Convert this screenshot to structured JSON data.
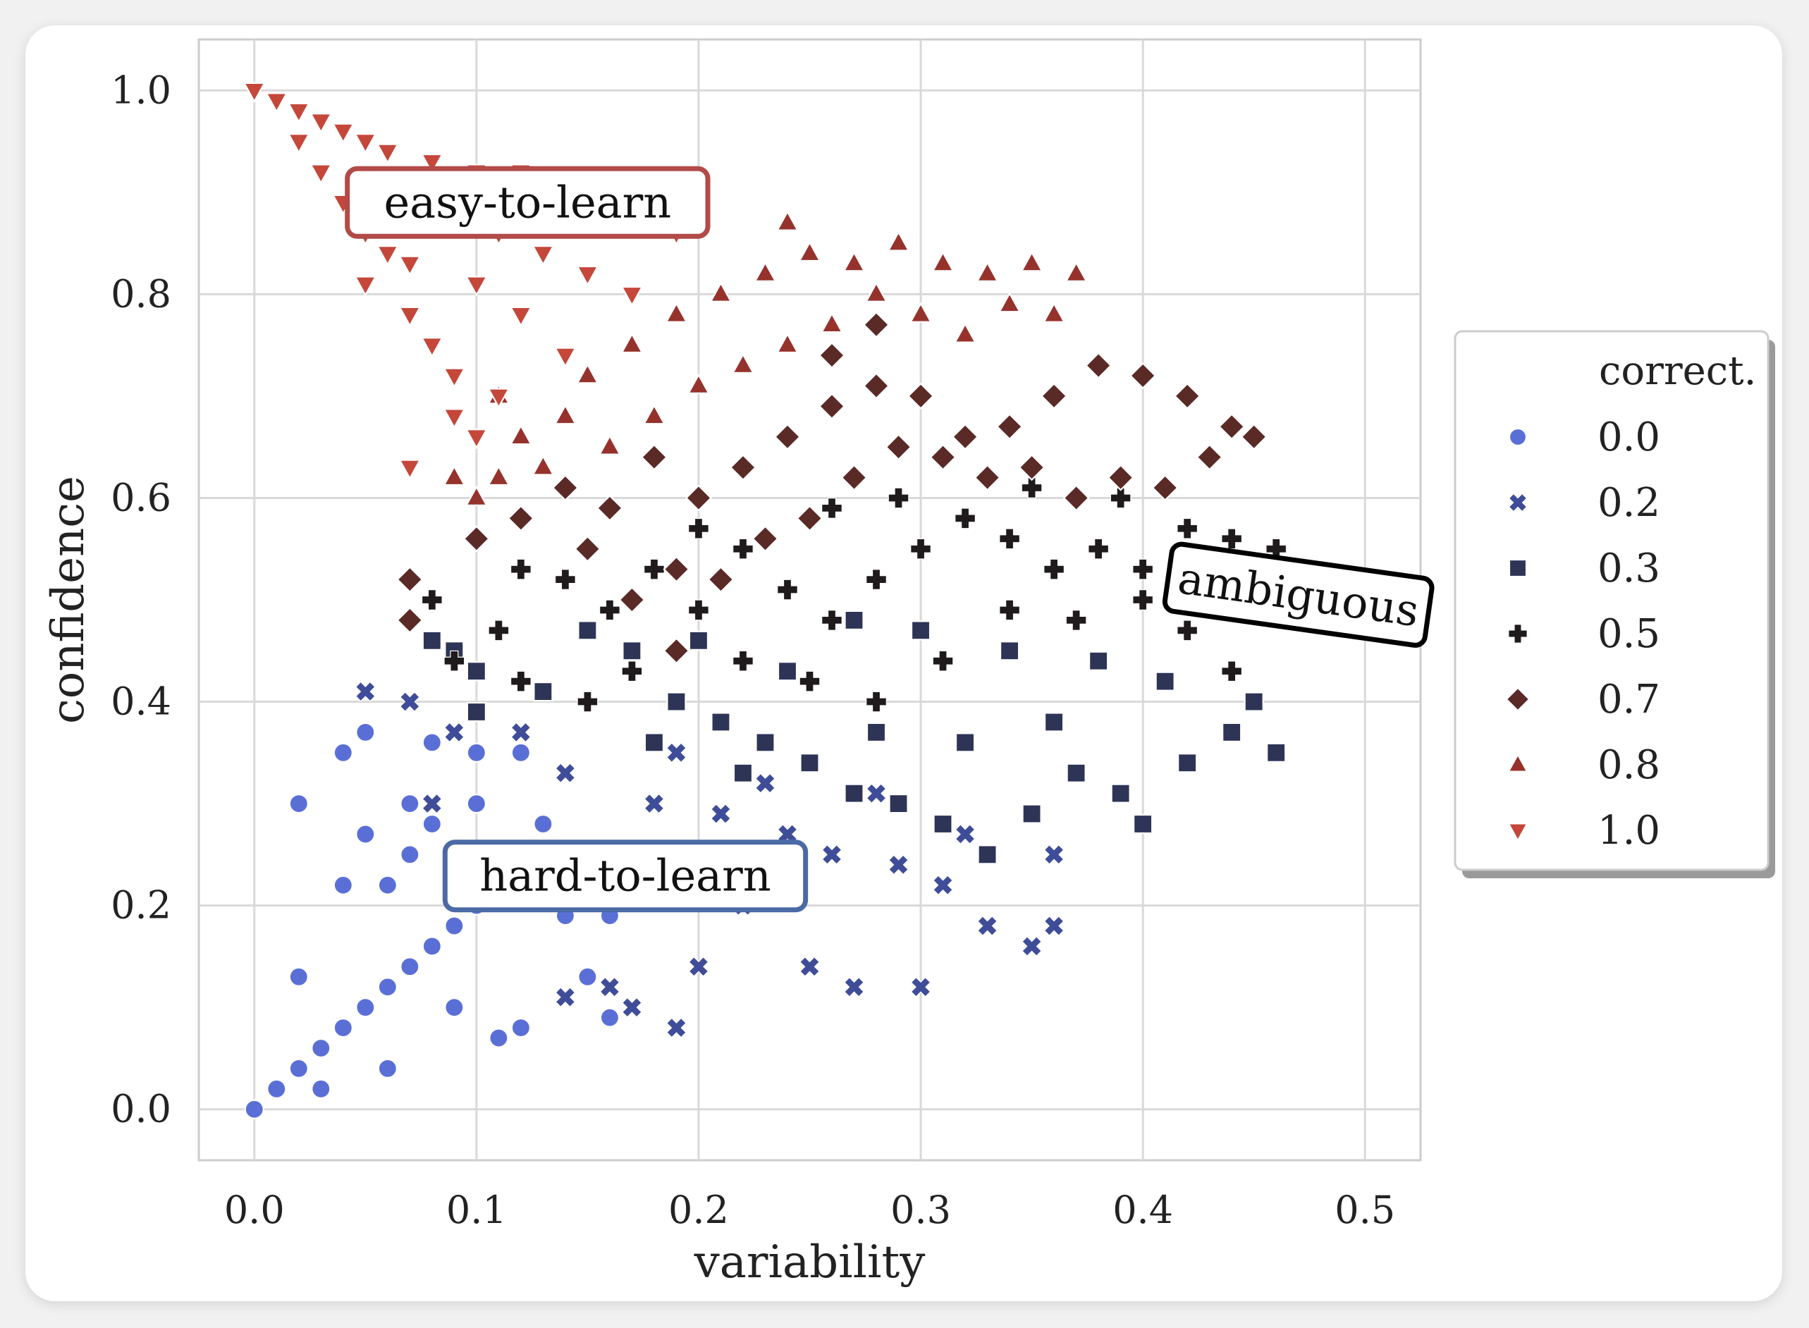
{
  "chart_data": {
    "type": "scatter",
    "xlabel": "variability",
    "ylabel": "confidence",
    "xlim": [
      -0.025,
      0.525
    ],
    "ylim": [
      -0.05,
      1.05
    ],
    "x_ticks": [
      0.0,
      0.1,
      0.2,
      0.3,
      0.4,
      0.5
    ],
    "y_ticks": [
      0.0,
      0.2,
      0.4,
      0.6,
      0.8,
      1.0
    ],
    "x_tick_labels": [
      "0.0",
      "0.1",
      "0.2",
      "0.3",
      "0.4",
      "0.5"
    ],
    "y_tick_labels": [
      "0.0",
      "0.2",
      "0.4",
      "0.6",
      "0.8",
      "1.0"
    ],
    "grid": true,
    "legend": {
      "title": "correct.",
      "placement": "right-outside",
      "entries": [
        {
          "label": "0.0",
          "marker": "circle",
          "color": "#5a6fd6"
        },
        {
          "label": "0.2",
          "marker": "x",
          "color": "#3f4d99"
        },
        {
          "label": "0.3",
          "marker": "square",
          "color": "#2d3456"
        },
        {
          "label": "0.5",
          "marker": "plus",
          "color": "#1f1a1c"
        },
        {
          "label": "0.7",
          "marker": "diamond",
          "color": "#5a2a26"
        },
        {
          "label": "0.8",
          "marker": "triangle-up",
          "color": "#96322c"
        },
        {
          "label": "1.0",
          "marker": "triangle-down",
          "color": "#c4473a"
        }
      ]
    },
    "series": [
      {
        "name": "0.0",
        "points": [
          [
            0.0,
            0.0
          ],
          [
            0.01,
            0.02
          ],
          [
            0.02,
            0.04
          ],
          [
            0.03,
            0.06
          ],
          [
            0.04,
            0.08
          ],
          [
            0.05,
            0.1
          ],
          [
            0.06,
            0.12
          ],
          [
            0.07,
            0.14
          ],
          [
            0.08,
            0.16
          ],
          [
            0.09,
            0.18
          ],
          [
            0.1,
            0.2
          ],
          [
            0.12,
            0.22
          ],
          [
            0.14,
            0.19
          ],
          [
            0.11,
            0.25
          ],
          [
            0.13,
            0.28
          ],
          [
            0.1,
            0.3
          ],
          [
            0.02,
            0.3
          ],
          [
            0.05,
            0.27
          ],
          [
            0.07,
            0.3
          ],
          [
            0.04,
            0.35
          ],
          [
            0.05,
            0.37
          ],
          [
            0.08,
            0.36
          ],
          [
            0.1,
            0.35
          ],
          [
            0.12,
            0.35
          ],
          [
            0.06,
            0.22
          ],
          [
            0.04,
            0.22
          ],
          [
            0.07,
            0.25
          ],
          [
            0.08,
            0.28
          ],
          [
            0.09,
            0.1
          ],
          [
            0.11,
            0.07
          ],
          [
            0.12,
            0.08
          ],
          [
            0.15,
            0.13
          ],
          [
            0.16,
            0.09
          ],
          [
            0.06,
            0.04
          ],
          [
            0.03,
            0.02
          ],
          [
            0.02,
            0.13
          ],
          [
            0.16,
            0.19
          ]
        ]
      },
      {
        "name": "0.2",
        "points": [
          [
            0.05,
            0.41
          ],
          [
            0.07,
            0.4
          ],
          [
            0.09,
            0.37
          ],
          [
            0.08,
            0.3
          ],
          [
            0.12,
            0.37
          ],
          [
            0.14,
            0.33
          ],
          [
            0.18,
            0.3
          ],
          [
            0.21,
            0.29
          ],
          [
            0.24,
            0.27
          ],
          [
            0.26,
            0.25
          ],
          [
            0.29,
            0.24
          ],
          [
            0.31,
            0.22
          ],
          [
            0.33,
            0.18
          ],
          [
            0.35,
            0.16
          ],
          [
            0.36,
            0.18
          ],
          [
            0.22,
            0.2
          ],
          [
            0.25,
            0.14
          ],
          [
            0.27,
            0.12
          ],
          [
            0.3,
            0.12
          ],
          [
            0.2,
            0.14
          ],
          [
            0.19,
            0.08
          ],
          [
            0.17,
            0.1
          ],
          [
            0.16,
            0.12
          ],
          [
            0.14,
            0.11
          ],
          [
            0.23,
            0.32
          ],
          [
            0.28,
            0.31
          ],
          [
            0.32,
            0.27
          ],
          [
            0.36,
            0.25
          ],
          [
            0.19,
            0.35
          ],
          [
            0.15,
            0.25
          ]
        ]
      },
      {
        "name": "0.3",
        "points": [
          [
            0.08,
            0.46
          ],
          [
            0.09,
            0.45
          ],
          [
            0.1,
            0.43
          ],
          [
            0.1,
            0.39
          ],
          [
            0.13,
            0.41
          ],
          [
            0.15,
            0.47
          ],
          [
            0.17,
            0.45
          ],
          [
            0.19,
            0.4
          ],
          [
            0.21,
            0.38
          ],
          [
            0.23,
            0.36
          ],
          [
            0.25,
            0.34
          ],
          [
            0.27,
            0.31
          ],
          [
            0.29,
            0.3
          ],
          [
            0.31,
            0.28
          ],
          [
            0.33,
            0.25
          ],
          [
            0.35,
            0.29
          ],
          [
            0.37,
            0.33
          ],
          [
            0.39,
            0.31
          ],
          [
            0.4,
            0.28
          ],
          [
            0.42,
            0.34
          ],
          [
            0.44,
            0.37
          ],
          [
            0.46,
            0.35
          ],
          [
            0.45,
            0.4
          ],
          [
            0.41,
            0.42
          ],
          [
            0.38,
            0.44
          ],
          [
            0.34,
            0.45
          ],
          [
            0.3,
            0.47
          ],
          [
            0.27,
            0.48
          ],
          [
            0.24,
            0.43
          ],
          [
            0.2,
            0.46
          ],
          [
            0.18,
            0.36
          ],
          [
            0.22,
            0.33
          ],
          [
            0.28,
            0.37
          ],
          [
            0.32,
            0.36
          ],
          [
            0.36,
            0.38
          ]
        ]
      },
      {
        "name": "0.5",
        "points": [
          [
            0.08,
            0.5
          ],
          [
            0.09,
            0.44
          ],
          [
            0.11,
            0.47
          ],
          [
            0.12,
            0.42
          ],
          [
            0.12,
            0.53
          ],
          [
            0.14,
            0.52
          ],
          [
            0.16,
            0.49
          ],
          [
            0.18,
            0.53
          ],
          [
            0.2,
            0.57
          ],
          [
            0.22,
            0.55
          ],
          [
            0.24,
            0.51
          ],
          [
            0.26,
            0.48
          ],
          [
            0.28,
            0.52
          ],
          [
            0.3,
            0.55
          ],
          [
            0.32,
            0.58
          ],
          [
            0.34,
            0.56
          ],
          [
            0.36,
            0.53
          ],
          [
            0.38,
            0.55
          ],
          [
            0.4,
            0.53
          ],
          [
            0.42,
            0.57
          ],
          [
            0.44,
            0.56
          ],
          [
            0.46,
            0.55
          ],
          [
            0.44,
            0.43
          ],
          [
            0.42,
            0.47
          ],
          [
            0.4,
            0.5
          ],
          [
            0.37,
            0.48
          ],
          [
            0.34,
            0.49
          ],
          [
            0.31,
            0.44
          ],
          [
            0.28,
            0.4
          ],
          [
            0.25,
            0.42
          ],
          [
            0.22,
            0.44
          ],
          [
            0.2,
            0.49
          ],
          [
            0.17,
            0.43
          ],
          [
            0.15,
            0.4
          ],
          [
            0.29,
            0.6
          ],
          [
            0.35,
            0.61
          ],
          [
            0.39,
            0.6
          ],
          [
            0.26,
            0.59
          ]
        ]
      },
      {
        "name": "0.7",
        "points": [
          [
            0.07,
            0.52
          ],
          [
            0.07,
            0.48
          ],
          [
            0.1,
            0.56
          ],
          [
            0.12,
            0.58
          ],
          [
            0.14,
            0.61
          ],
          [
            0.16,
            0.59
          ],
          [
            0.17,
            0.5
          ],
          [
            0.19,
            0.53
          ],
          [
            0.2,
            0.6
          ],
          [
            0.22,
            0.63
          ],
          [
            0.24,
            0.66
          ],
          [
            0.26,
            0.69
          ],
          [
            0.28,
            0.71
          ],
          [
            0.3,
            0.7
          ],
          [
            0.32,
            0.66
          ],
          [
            0.34,
            0.67
          ],
          [
            0.36,
            0.7
          ],
          [
            0.38,
            0.73
          ],
          [
            0.4,
            0.72
          ],
          [
            0.42,
            0.7
          ],
          [
            0.44,
            0.67
          ],
          [
            0.45,
            0.66
          ],
          [
            0.43,
            0.64
          ],
          [
            0.41,
            0.61
          ],
          [
            0.39,
            0.62
          ],
          [
            0.37,
            0.6
          ],
          [
            0.35,
            0.63
          ],
          [
            0.33,
            0.62
          ],
          [
            0.31,
            0.64
          ],
          [
            0.29,
            0.65
          ],
          [
            0.27,
            0.62
          ],
          [
            0.25,
            0.58
          ],
          [
            0.23,
            0.56
          ],
          [
            0.21,
            0.52
          ],
          [
            0.19,
            0.45
          ],
          [
            0.26,
            0.74
          ],
          [
            0.28,
            0.77
          ],
          [
            0.18,
            0.64
          ],
          [
            0.15,
            0.55
          ]
        ]
      },
      {
        "name": "0.8",
        "points": [
          [
            0.1,
            0.6
          ],
          [
            0.11,
            0.62
          ],
          [
            0.12,
            0.66
          ],
          [
            0.14,
            0.68
          ],
          [
            0.15,
            0.72
          ],
          [
            0.17,
            0.75
          ],
          [
            0.19,
            0.78
          ],
          [
            0.21,
            0.8
          ],
          [
            0.23,
            0.82
          ],
          [
            0.25,
            0.84
          ],
          [
            0.27,
            0.83
          ],
          [
            0.29,
            0.85
          ],
          [
            0.31,
            0.83
          ],
          [
            0.33,
            0.82
          ],
          [
            0.35,
            0.83
          ],
          [
            0.37,
            0.82
          ],
          [
            0.36,
            0.78
          ],
          [
            0.34,
            0.79
          ],
          [
            0.32,
            0.76
          ],
          [
            0.3,
            0.78
          ],
          [
            0.28,
            0.8
          ],
          [
            0.26,
            0.77
          ],
          [
            0.24,
            0.75
          ],
          [
            0.22,
            0.73
          ],
          [
            0.2,
            0.71
          ],
          [
            0.18,
            0.68
          ],
          [
            0.16,
            0.65
          ],
          [
            0.13,
            0.63
          ],
          [
            0.11,
            0.7
          ],
          [
            0.09,
            0.62
          ],
          [
            0.2,
            0.9
          ],
          [
            0.24,
            0.87
          ]
        ]
      },
      {
        "name": "1.0",
        "points": [
          [
            0.0,
            1.0
          ],
          [
            0.01,
            0.99
          ],
          [
            0.02,
            0.98
          ],
          [
            0.03,
            0.97
          ],
          [
            0.04,
            0.96
          ],
          [
            0.05,
            0.95
          ],
          [
            0.06,
            0.94
          ],
          [
            0.08,
            0.93
          ],
          [
            0.1,
            0.92
          ],
          [
            0.12,
            0.92
          ],
          [
            0.14,
            0.91
          ],
          [
            0.16,
            0.91
          ],
          [
            0.18,
            0.9
          ],
          [
            0.2,
            0.89
          ],
          [
            0.02,
            0.95
          ],
          [
            0.03,
            0.92
          ],
          [
            0.04,
            0.89
          ],
          [
            0.05,
            0.86
          ],
          [
            0.06,
            0.84
          ],
          [
            0.05,
            0.81
          ],
          [
            0.07,
            0.83
          ],
          [
            0.07,
            0.78
          ],
          [
            0.08,
            0.75
          ],
          [
            0.09,
            0.72
          ],
          [
            0.09,
            0.68
          ],
          [
            0.1,
            0.66
          ],
          [
            0.11,
            0.7
          ],
          [
            0.07,
            0.63
          ],
          [
            0.08,
            0.88
          ],
          [
            0.11,
            0.86
          ],
          [
            0.13,
            0.84
          ],
          [
            0.15,
            0.82
          ],
          [
            0.17,
            0.8
          ],
          [
            0.19,
            0.86
          ],
          [
            0.12,
            0.78
          ],
          [
            0.14,
            0.74
          ],
          [
            0.1,
            0.81
          ],
          [
            0.06,
            0.9
          ]
        ]
      }
    ],
    "annotations": [
      {
        "text": "easy-to-learn",
        "x": 0.123,
        "y": 0.89,
        "color": "#b24a48",
        "rotation": 0
      },
      {
        "text": "ambiguous",
        "x": 0.47,
        "y": 0.505,
        "color": "#000000",
        "rotation": 8
      },
      {
        "text": "hard-to-learn",
        "x": 0.167,
        "y": 0.229,
        "color": "#4a6aa6",
        "rotation": 0
      }
    ]
  }
}
